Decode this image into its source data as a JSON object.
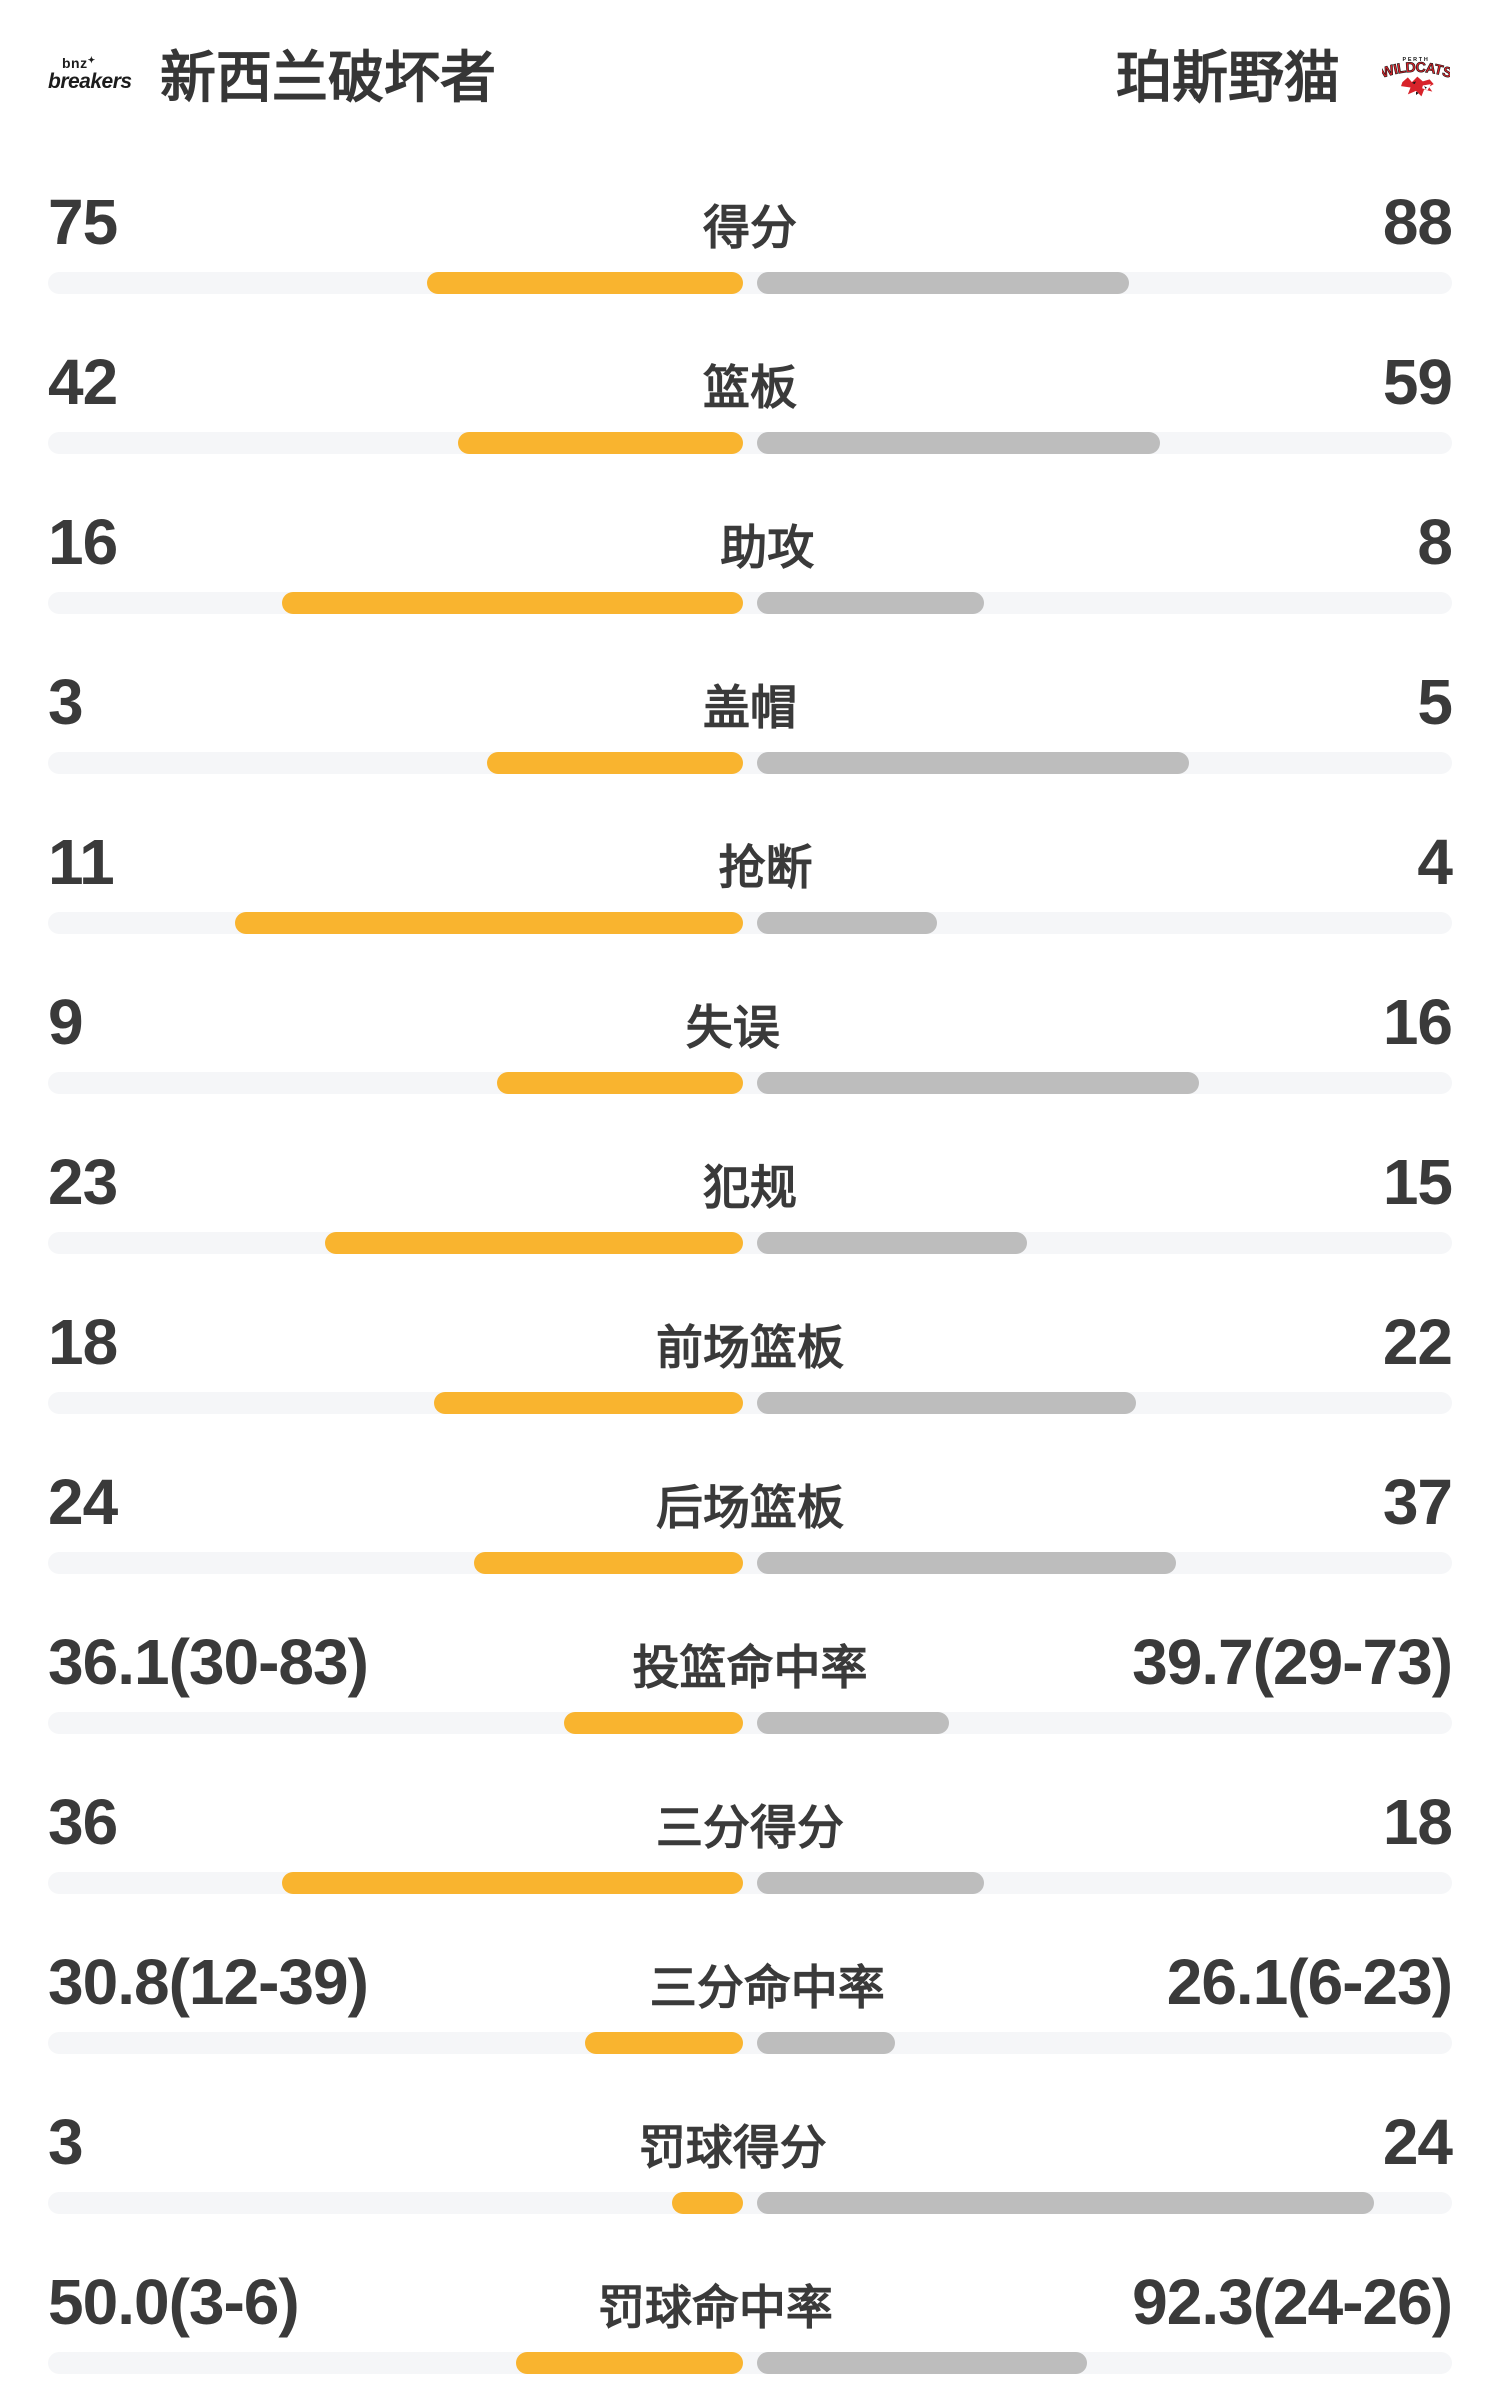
{
  "header": {
    "home_team": {
      "name": "新西兰破坏者",
      "logo_small": "bnz",
      "logo_spark": "✦",
      "logo_word": "breakers"
    },
    "away_team": {
      "name": "珀斯野猫",
      "logo_top": "PERTH",
      "logo_main": "WILDCATS"
    }
  },
  "colors": {
    "home_bar": "#F9B42F",
    "away_bar": "#BDBDBD",
    "bar_track": "#F5F6F8",
    "text": "#3A3A3A",
    "away_logo_red": "#D8232A"
  },
  "rows": [
    {
      "label": "得分",
      "left": "75",
      "right": "88",
      "left_val": 75,
      "right_val": 88,
      "type": "count"
    },
    {
      "label": "篮板",
      "left": "42",
      "right": "59",
      "left_val": 42,
      "right_val": 59,
      "type": "count"
    },
    {
      "label": "助攻",
      "left": "16",
      "right": "8",
      "left_val": 16,
      "right_val": 8,
      "type": "count"
    },
    {
      "label": "盖帽",
      "left": "3",
      "right": "5",
      "left_val": 3,
      "right_val": 5,
      "type": "count"
    },
    {
      "label": "抢断",
      "left": "11",
      "right": "4",
      "left_val": 11,
      "right_val": 4,
      "type": "count"
    },
    {
      "label": "失误",
      "left": "9",
      "right": "16",
      "left_val": 9,
      "right_val": 16,
      "type": "count"
    },
    {
      "label": "犯规",
      "left": "23",
      "right": "15",
      "left_val": 23,
      "right_val": 15,
      "type": "count"
    },
    {
      "label": "前场篮板",
      "left": "18",
      "right": "22",
      "left_val": 18,
      "right_val": 22,
      "type": "count"
    },
    {
      "label": "后场篮板",
      "left": "24",
      "right": "37",
      "left_val": 24,
      "right_val": 37,
      "type": "count"
    },
    {
      "label": "投篮命中率",
      "left": "36.1(30-83)",
      "right": "39.7(29-73)",
      "left_val": 36.1,
      "right_val": 39.7,
      "type": "percent"
    },
    {
      "label": "三分得分",
      "left": "36",
      "right": "18",
      "left_val": 36,
      "right_val": 18,
      "type": "count"
    },
    {
      "label": "三分命中率",
      "left": "30.8(12-39)",
      "right": "26.1(6-23)",
      "left_val": 30.8,
      "right_val": 26.1,
      "type": "percent"
    },
    {
      "label": "罚球得分",
      "left": "3",
      "right": "24",
      "left_val": 3,
      "right_val": 24,
      "type": "count"
    },
    {
      "label": "罚球命中率",
      "left": "50.0(3-6)",
      "right": "92.3(24-26)",
      "left_val": 50.0,
      "right_val": 92.3,
      "type": "percent"
    }
  ]
}
